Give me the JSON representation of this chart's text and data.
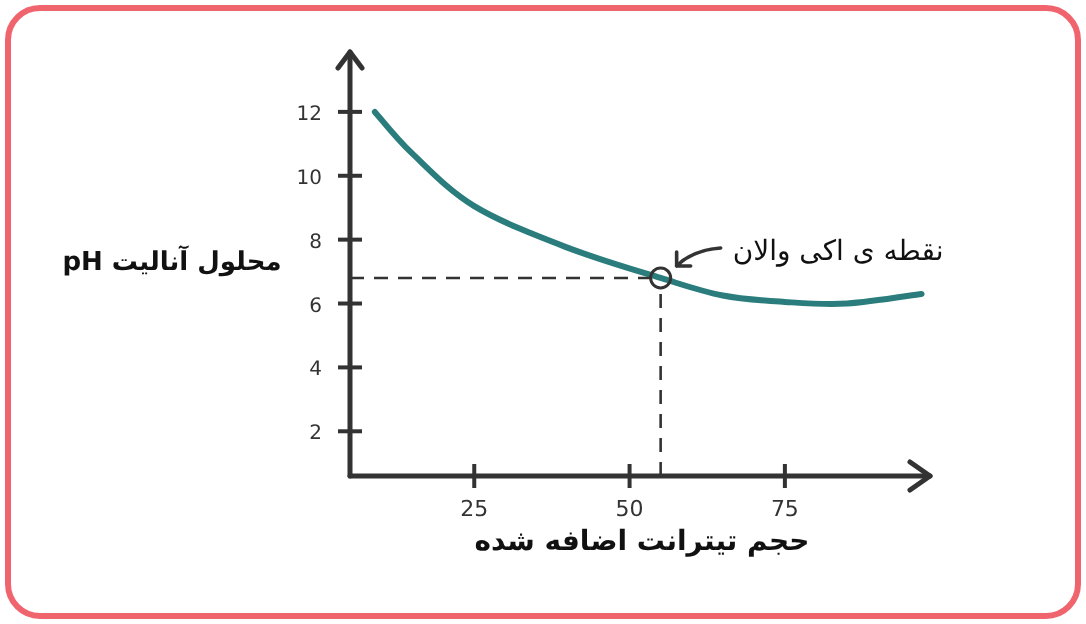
{
  "chart_data": {
    "type": "line",
    "xlabel": "حجم تیترانت اضافه شده",
    "ylabel": "pH محلول آنالیت",
    "x": [
      9,
      15,
      25,
      40,
      55,
      65,
      75,
      85,
      97
    ],
    "series": [
      {
        "color": "#2b7d7d",
        "values": [
          12,
          10.7,
          9.05,
          7.75,
          6.8,
          6.25,
          6.05,
          6.0,
          6.3
        ]
      }
    ],
    "xlim": [
      5,
      99
    ],
    "ylim": [
      0.6,
      14
    ],
    "xticks": [
      25,
      50,
      75
    ],
    "yticks": [
      2,
      4,
      6,
      8,
      10,
      12
    ],
    "marker": "none",
    "line_style": "solid",
    "ref_lines": [
      {
        "axis": "y",
        "value": 6.8,
        "line_style": "dashed"
      },
      {
        "axis": "x",
        "value": 55,
        "line_style": "dashed"
      }
    ],
    "annotations": [
      {
        "text": "نقطه ی اکی والان",
        "x": 55,
        "y": 6.8
      }
    ]
  }
}
